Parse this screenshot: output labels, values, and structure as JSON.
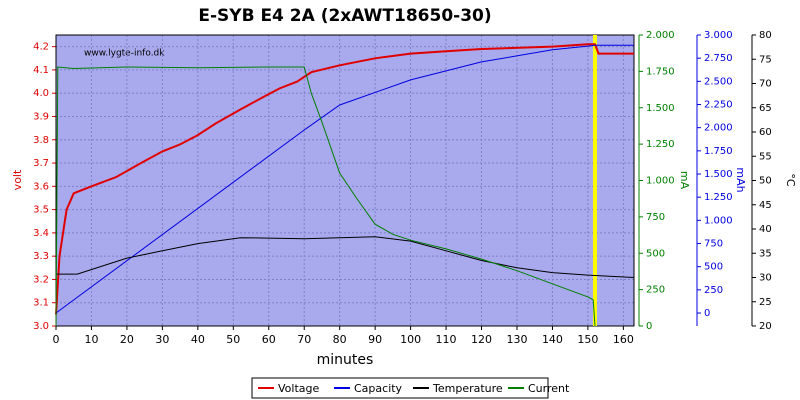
{
  "chart_data": {
    "type": "line",
    "title": "E-SYB E4 2A (2xAWT18650-30)",
    "annotation": "www.lygte-info.dk",
    "xlabel": "minutes",
    "ylabel": "volt",
    "y2label": "mA",
    "y3label": "mAh",
    "y4label": "°C",
    "xlim": [
      0,
      163
    ],
    "xticks": [
      0,
      10,
      20,
      30,
      40,
      50,
      60,
      70,
      80,
      90,
      100,
      110,
      120,
      130,
      140,
      150,
      160
    ],
    "ylim": [
      3.0,
      4.25
    ],
    "yticks": [
      {
        "value": 3,
        "label": "3.0"
      },
      3.1,
      3.2,
      3.3,
      3.4,
      3.5,
      3.6,
      3.7,
      3.8,
      3.9,
      {
        "value": 4,
        "label": "4.0"
      },
      4.1,
      4.2
    ],
    "y2lim": [
      0,
      2000
    ],
    "y2ticks": [
      0,
      250,
      500,
      750,
      {
        "value": 1000,
        "label": "1.000"
      },
      {
        "value": 1250,
        "label": "1.250"
      },
      {
        "value": 1500,
        "label": "1.500"
      },
      {
        "value": 1750,
        "label": "1.750"
      },
      {
        "value": 2000,
        "label": "2.000"
      }
    ],
    "y3lim": [
      -140,
      3000
    ],
    "y3ticks": [
      0,
      250,
      500,
      750,
      {
        "value": 1000,
        "label": "1.000"
      },
      {
        "value": 1250,
        "label": "1.250"
      },
      {
        "value": 1500,
        "label": "1.500"
      },
      {
        "value": 1750,
        "label": "1.750"
      },
      {
        "value": 2000,
        "label": "2.000"
      },
      {
        "value": 2250,
        "label": "2.250"
      },
      {
        "value": 2500,
        "label": "2.500"
      },
      {
        "value": 2750,
        "label": "2.750"
      },
      {
        "value": 3000,
        "label": "3.000"
      }
    ],
    "y4lim": [
      20,
      80
    ],
    "y4ticks": [
      20,
      25,
      30,
      35,
      40,
      45,
      50,
      55,
      60,
      65,
      70,
      75,
      80
    ],
    "grid": true,
    "highlight_x": 152,
    "highlight_color": "#ffff00",
    "series": [
      {
        "name": "Voltage",
        "color": "#e00000",
        "axis": "y",
        "x": [
          0,
          1,
          3,
          5,
          10,
          17,
          24,
          30,
          35,
          40,
          45,
          52,
          58,
          63,
          68,
          72,
          80,
          90,
          100,
          110,
          120,
          140,
          150,
          152,
          153,
          163
        ],
        "values": [
          3.05,
          3.3,
          3.5,
          3.57,
          3.6,
          3.64,
          3.7,
          3.75,
          3.78,
          3.82,
          3.87,
          3.93,
          3.98,
          4.02,
          4.05,
          4.09,
          4.12,
          4.15,
          4.17,
          4.18,
          4.19,
          4.2,
          4.21,
          4.21,
          4.17,
          4.17
        ]
      },
      {
        "name": "Capacity",
        "color": "#0000e0",
        "axis": "y3",
        "x": [
          0,
          70,
          80,
          100,
          120,
          140,
          150,
          152,
          163
        ],
        "values": [
          0,
          1975,
          2245,
          2515,
          2710,
          2840,
          2880,
          2890,
          2890
        ]
      },
      {
        "name": "Temperature",
        "color": "#000000",
        "axis": "y4",
        "x": [
          0,
          6,
          20,
          30,
          40,
          52,
          70,
          90,
          100,
          110,
          120,
          130,
          140,
          150,
          163
        ],
        "values": [
          30.7,
          30.7,
          34,
          35.5,
          37,
          38.2,
          38,
          38.4,
          37.5,
          35.5,
          33.5,
          32,
          31,
          30.5,
          30
        ]
      },
      {
        "name": "Current",
        "color": "#008000",
        "axis": "y2",
        "x": [
          0,
          0.5,
          5,
          20,
          40,
          60,
          70,
          72,
          75,
          80,
          85,
          90,
          95,
          100,
          110,
          120,
          130,
          140,
          150,
          151.5,
          152
        ],
        "values": [
          0,
          1780,
          1770,
          1780,
          1775,
          1780,
          1780,
          1600,
          1400,
          1050,
          870,
          700,
          630,
          590,
          530,
          460,
          380,
          290,
          200,
          180,
          0
        ]
      }
    ]
  }
}
